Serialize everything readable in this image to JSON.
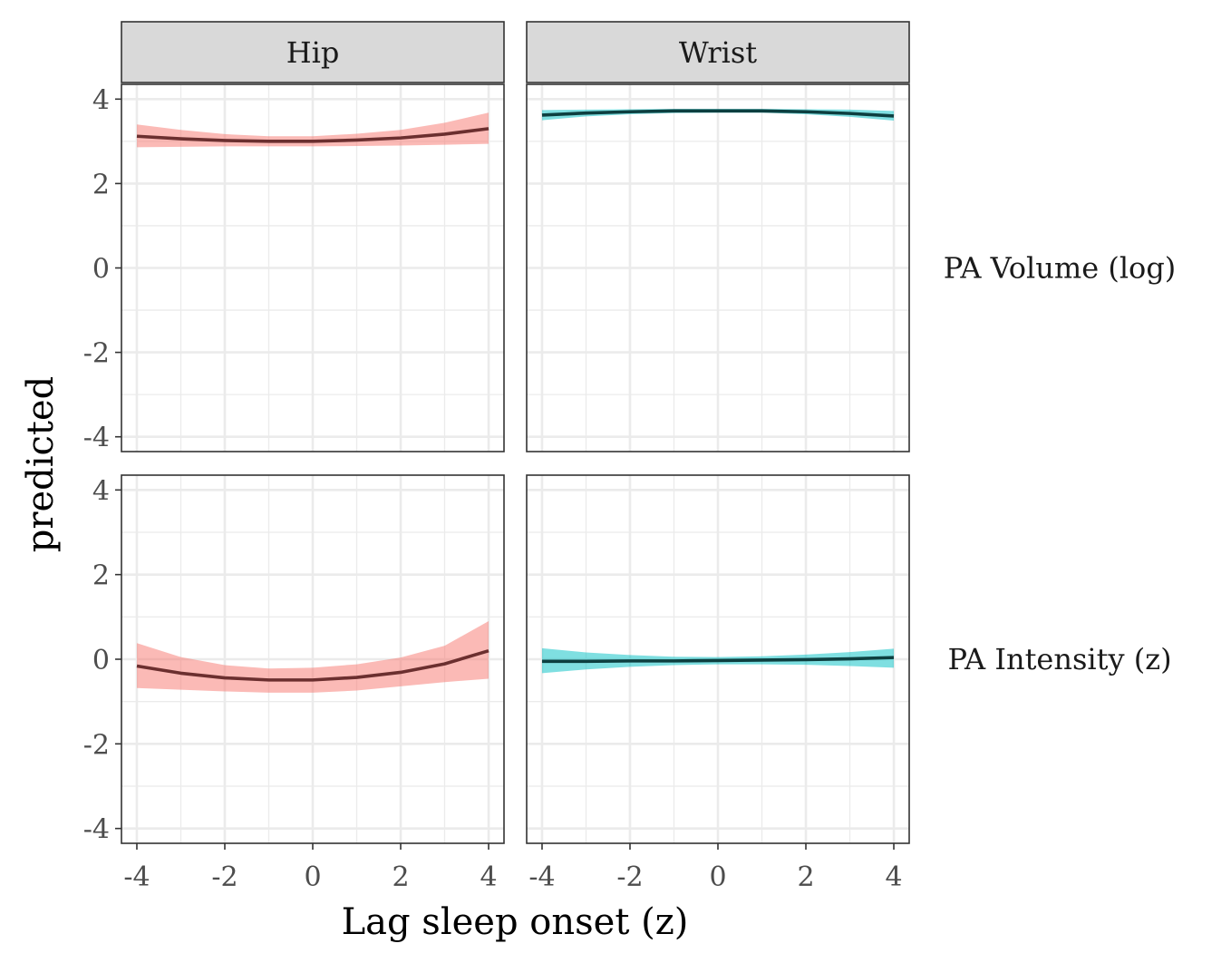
{
  "chart_data": {
    "type": "line",
    "xlabel": "Lag sleep onset (z)",
    "ylabel": "predicted",
    "xlim": [
      -4.35,
      4.35
    ],
    "ylim": [
      -4.35,
      4.35
    ],
    "x_ticks": [
      -4,
      -2,
      0,
      2,
      4
    ],
    "y_ticks": [
      -4,
      -2,
      0,
      2,
      4
    ],
    "x_tick_labels": [
      "-4",
      "-2",
      "0",
      "2",
      "4"
    ],
    "y_tick_labels": [
      "-4",
      "-2",
      "0",
      "2",
      "4"
    ],
    "grid": true,
    "columns": [
      "Hip",
      "Wrist"
    ],
    "rows": [
      "PA Volume (log)",
      "PA Intensity (z)"
    ],
    "x": [
      -4,
      -3,
      -2,
      -1,
      0,
      1,
      2,
      3,
      4
    ],
    "panels": [
      {
        "column": "Hip",
        "row": "PA Volume (log)",
        "fill_color": "#F8766D",
        "line_color": "#6b2f2f",
        "fit": [
          3.12,
          3.06,
          3.02,
          3.0,
          3.0,
          3.03,
          3.08,
          3.17,
          3.3
        ],
        "lower": [
          2.86,
          2.87,
          2.88,
          2.88,
          2.88,
          2.89,
          2.9,
          2.92,
          2.94
        ],
        "upper": [
          3.4,
          3.27,
          3.17,
          3.12,
          3.12,
          3.18,
          3.27,
          3.44,
          3.68
        ]
      },
      {
        "column": "Wrist",
        "row": "PA Volume (log)",
        "fill_color": "#00BFC4",
        "line_color": "#0d3f40",
        "fit": [
          3.62,
          3.67,
          3.7,
          3.72,
          3.72,
          3.72,
          3.7,
          3.66,
          3.6
        ],
        "lower": [
          3.5,
          3.59,
          3.64,
          3.67,
          3.68,
          3.68,
          3.64,
          3.58,
          3.49
        ],
        "upper": [
          3.74,
          3.75,
          3.76,
          3.77,
          3.77,
          3.77,
          3.76,
          3.75,
          3.72
        ]
      },
      {
        "column": "Hip",
        "row": "PA Intensity (z)",
        "fill_color": "#F8766D",
        "line_color": "#6b2f2f",
        "fit": [
          -0.16,
          -0.33,
          -0.44,
          -0.49,
          -0.49,
          -0.43,
          -0.31,
          -0.11,
          0.2
        ],
        "lower": [
          -0.68,
          -0.72,
          -0.76,
          -0.79,
          -0.79,
          -0.74,
          -0.64,
          -0.54,
          -0.46
        ],
        "upper": [
          0.38,
          0.05,
          -0.14,
          -0.22,
          -0.2,
          -0.12,
          0.04,
          0.32,
          0.9
        ]
      },
      {
        "column": "Wrist",
        "row": "PA Intensity (z)",
        "fill_color": "#00BFC4",
        "line_color": "#0d3f40",
        "fit": [
          -0.05,
          -0.05,
          -0.04,
          -0.04,
          -0.03,
          -0.02,
          -0.01,
          0.01,
          0.04
        ],
        "lower": [
          -0.33,
          -0.24,
          -0.18,
          -0.14,
          -0.12,
          -0.12,
          -0.13,
          -0.16,
          -0.2
        ],
        "upper": [
          0.26,
          0.16,
          0.1,
          0.06,
          0.05,
          0.07,
          0.11,
          0.17,
          0.25
        ]
      }
    ]
  }
}
